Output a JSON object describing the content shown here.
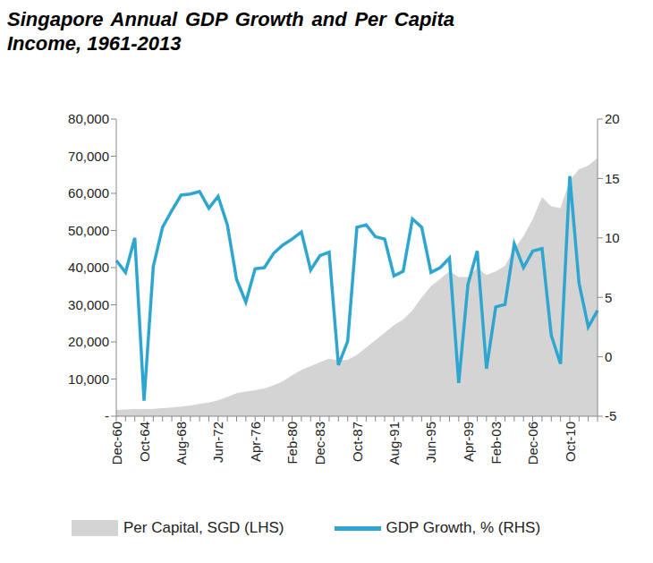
{
  "chart_data": {
    "type": "line",
    "title": "Singapore Annual GDP Growth and Per Capita Income, 1961-2013",
    "categories": [
      "Dec-60",
      null,
      null,
      "Oct-64",
      null,
      null,
      null,
      "Aug-68",
      null,
      null,
      null,
      "Jun-72",
      null,
      null,
      null,
      "Apr-76",
      null,
      null,
      null,
      "Feb-80",
      null,
      null,
      "Dec-83",
      null,
      null,
      null,
      "Oct-87",
      null,
      null,
      null,
      "Aug-91",
      null,
      null,
      null,
      "Jun-95",
      null,
      null,
      null,
      "Apr-99",
      null,
      null,
      "Feb-03",
      null,
      null,
      null,
      "Dec-06",
      null,
      null,
      null,
      "Oct-10",
      null,
      null,
      null
    ],
    "series": [
      {
        "name": "Per Capital, SGD (LHS)",
        "type": "area",
        "color": "#d4d4d4",
        "values": [
          1700,
          1800,
          1950,
          1900,
          2000,
          2150,
          2350,
          2600,
          2900,
          3300,
          3700,
          4300,
          5200,
          6200,
          6600,
          7000,
          7500,
          8300,
          9400,
          11000,
          12500,
          13500,
          14500,
          15500,
          15000,
          15200,
          16500,
          18500,
          20500,
          22500,
          24500,
          26000,
          28500,
          32000,
          35000,
          37000,
          39000,
          37500,
          37500,
          40000,
          38000,
          39000,
          40500,
          45000,
          48500,
          53000,
          59000,
          56500,
          56000,
          63500,
          66500,
          67500,
          69500
        ]
      },
      {
        "name": "GDP Growth, % (RHS)",
        "type": "line",
        "color": "#2fa6d0",
        "axis": "y2",
        "values": [
          8.1,
          7.1,
          10.0,
          -3.7,
          7.6,
          10.9,
          12.3,
          13.6,
          13.7,
          13.9,
          12.5,
          13.5,
          11.1,
          6.5,
          4.6,
          7.4,
          7.5,
          8.7,
          9.4,
          9.9,
          10.5,
          7.3,
          8.5,
          8.8,
          -0.7,
          1.3,
          10.9,
          11.1,
          10.1,
          9.9,
          6.8,
          7.2,
          11.6,
          10.9,
          7.1,
          7.5,
          8.3,
          -2.2,
          6.1,
          8.9,
          -1.0,
          4.2,
          4.4,
          9.5,
          7.5,
          8.9,
          9.1,
          1.8,
          -0.6,
          15.2,
          6.2,
          2.5,
          3.9
        ]
      }
    ],
    "ylim": [
      0,
      80000
    ],
    "yticks": [
      {
        "value": 0,
        "label": "-"
      },
      {
        "value": 10000,
        "label": "10,000"
      },
      {
        "value": 20000,
        "label": "20,000"
      },
      {
        "value": 30000,
        "label": "30,000"
      },
      {
        "value": 40000,
        "label": "40,000"
      },
      {
        "value": 50000,
        "label": "50,000"
      },
      {
        "value": 60000,
        "label": "60,000"
      },
      {
        "value": 70000,
        "label": "70,000"
      },
      {
        "value": 80000,
        "label": "80,000"
      }
    ],
    "y2lim": [
      -5,
      20
    ],
    "y2ticks": [
      -5,
      0,
      5,
      10,
      15,
      20
    ],
    "grid": false,
    "legend": "bottom"
  }
}
